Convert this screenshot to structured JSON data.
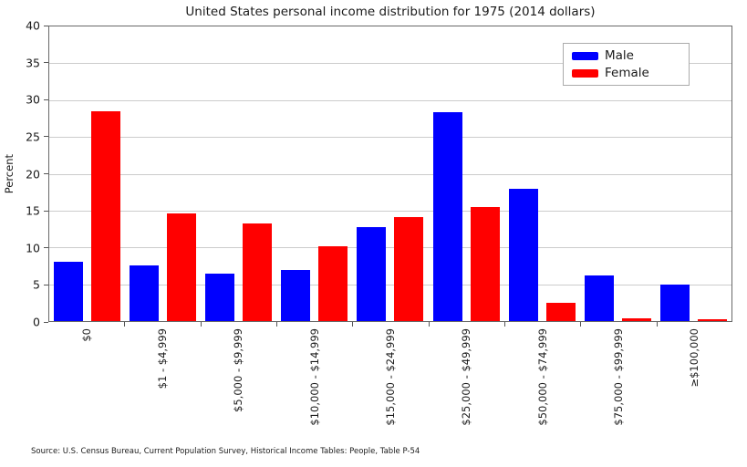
{
  "source_note": "Source: U.S. Census Bureau, Current Population Survey, Historical Income Tables: People, Table P-54",
  "legend": {
    "position": "upper right",
    "items": [
      {
        "label": "Male",
        "color": "#0000ff"
      },
      {
        "label": "Female",
        "color": "#ff0000"
      }
    ]
  },
  "colors": {
    "male": "#0000ff",
    "female": "#ff0000",
    "grid": "#cccccc",
    "spine": "#686868",
    "tick": "#555555",
    "text": "#1a1a1a",
    "background": "#ffffff"
  },
  "chart_data": {
    "type": "bar",
    "title": "United States personal income distribution for 1975 (2014 dollars)",
    "xlabel": "",
    "ylabel": "Percent",
    "ylim": [
      0,
      40
    ],
    "yticks": [
      0,
      5,
      10,
      15,
      20,
      25,
      30,
      35,
      40
    ],
    "grid": true,
    "legend_position": "upper right",
    "categories": [
      "$0",
      "$1 - $4,999",
      "$5,000 - $9,999",
      "$10,000 - $14,999",
      "$15,000 - $24,999",
      "$25,000 - $49,999",
      "$50,000 - $74,999",
      "$75,000 - $99,999",
      "≥$100,000"
    ],
    "series": [
      {
        "name": "Male",
        "color": "#0000ff",
        "values": [
          8.1,
          7.6,
          6.4,
          6.9,
          12.7,
          28.3,
          18.0,
          6.2,
          4.9
        ]
      },
      {
        "name": "Female",
        "color": "#ff0000",
        "values": [
          28.5,
          14.6,
          13.3,
          10.1,
          14.1,
          15.5,
          2.5,
          0.4,
          0.2
        ]
      }
    ]
  }
}
